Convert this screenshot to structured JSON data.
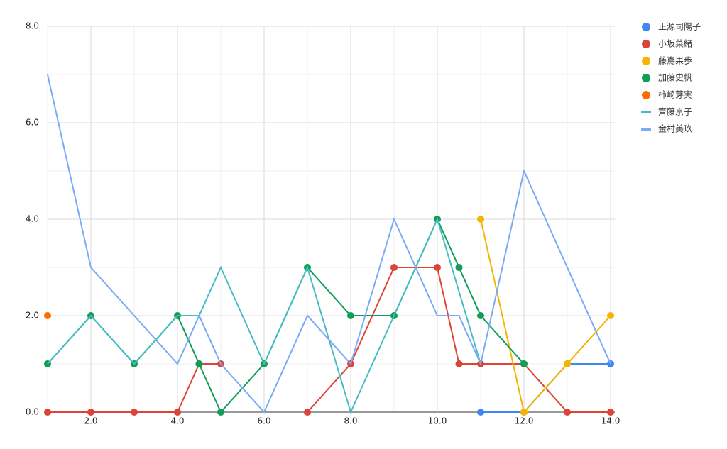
{
  "chart_data": {
    "type": "line",
    "x": [
      1,
      2,
      3,
      4,
      4.5,
      5,
      6,
      7,
      8,
      9,
      10,
      10.5,
      11,
      12,
      13,
      14
    ],
    "xlim": [
      1,
      14
    ],
    "xticks": [
      {
        "value": 2,
        "label": "2.0"
      },
      {
        "value": 4,
        "label": "4.0"
      },
      {
        "value": 6,
        "label": "6.0"
      },
      {
        "value": 8,
        "label": "8.0"
      },
      {
        "value": 10,
        "label": "10.0"
      },
      {
        "value": 12,
        "label": "12.0"
      },
      {
        "value": 14,
        "label": "14.0"
      }
    ],
    "ylim": [
      0,
      8
    ],
    "yticks": [
      {
        "value": 0,
        "label": "0.0"
      },
      {
        "value": 2,
        "label": "2.0"
      },
      {
        "value": 4,
        "label": "4.0"
      },
      {
        "value": 6,
        "label": "6.0"
      },
      {
        "value": 8,
        "label": "8.0"
      }
    ],
    "grid": true,
    "legend": "right",
    "series": [
      {
        "name": "正源司陽子",
        "color": "#4285f4",
        "markers": true,
        "values": [
          null,
          null,
          null,
          null,
          null,
          null,
          null,
          null,
          null,
          null,
          null,
          null,
          0,
          0,
          1,
          1
        ]
      },
      {
        "name": "小坂菜緒",
        "color": "#db4437",
        "markers": true,
        "values": [
          0,
          0,
          0,
          0,
          1,
          1,
          null,
          0,
          1,
          3,
          3,
          1,
          1,
          1,
          0,
          0
        ]
      },
      {
        "name": "藤嶌果歩",
        "color": "#f4b400",
        "markers": true,
        "values": [
          null,
          null,
          null,
          null,
          null,
          null,
          null,
          null,
          null,
          null,
          null,
          null,
          4,
          0,
          1,
          2
        ]
      },
      {
        "name": "加藤史帆",
        "color": "#0f9d58",
        "markers": true,
        "values": [
          1,
          2,
          1,
          2,
          1,
          0,
          1,
          3,
          2,
          2,
          4,
          3,
          2,
          1,
          null,
          null
        ]
      },
      {
        "name": "柿崎芽実",
        "color": "#ff6d01",
        "markers": true,
        "values": [
          2,
          null,
          null,
          null,
          null,
          null,
          null,
          null,
          null,
          null,
          null,
          null,
          null,
          null,
          null,
          null
        ]
      },
      {
        "name": "齊藤京子",
        "color": "#46bdc6",
        "markers": false,
        "values": [
          1,
          2,
          1,
          2,
          2,
          3,
          1,
          3,
          0,
          2,
          4,
          2.5,
          1,
          null,
          null,
          null
        ]
      },
      {
        "name": "金村美玖",
        "color": "#7baaf7",
        "markers": false,
        "values": [
          7,
          3,
          2,
          1,
          2,
          1,
          0,
          2,
          1,
          4,
          2,
          2,
          1,
          5,
          3,
          1
        ]
      }
    ]
  }
}
